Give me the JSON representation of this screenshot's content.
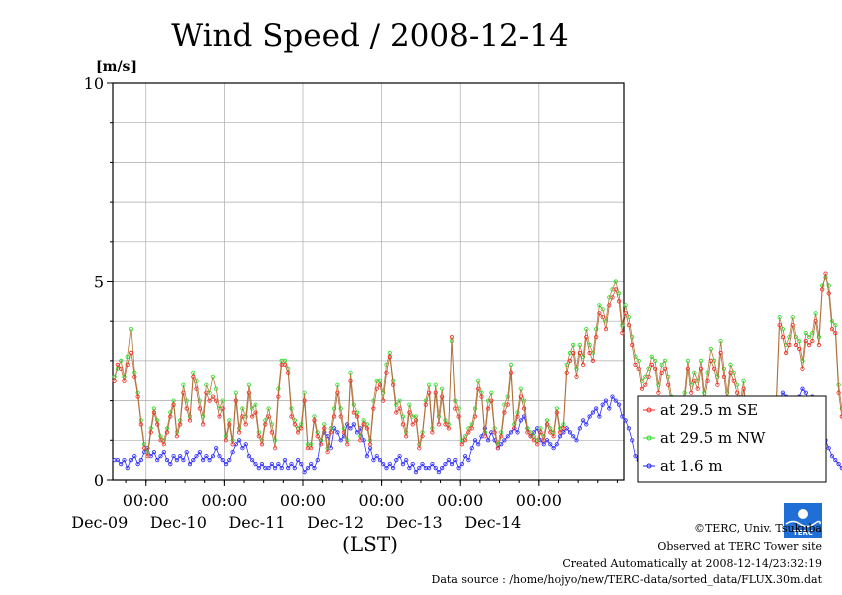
{
  "chart_data": {
    "type": "line",
    "title": "Wind Speed / 2008-12-14",
    "ylabel": "[m/s]",
    "xlabel": "(LST)",
    "ylim": [
      0,
      10
    ],
    "yticks": [
      "0",
      "5",
      "10"
    ],
    "xlim": [
      "2008-12-08T14:00",
      "2008-12-15T02:00"
    ],
    "xticks": [
      {
        "time": "00:00",
        "date": "Dec-09"
      },
      {
        "time": "00:00",
        "date": "Dec-10"
      },
      {
        "time": "00:00",
        "date": "Dec-11"
      },
      {
        "time": "00:00",
        "date": "Dec-12"
      },
      {
        "time": "00:00",
        "date": "Dec-13"
      },
      {
        "time": "00:00",
        "date": "Dec-14"
      }
    ],
    "grid": true,
    "legend_position": "right",
    "sample_interval_hours": 1,
    "series": [
      {
        "name": "at 29.5 m SE",
        "color": "#ff2020",
        "values": [
          2.5,
          2.9,
          2.8,
          2.5,
          2.9,
          3.2,
          2.6,
          2.1,
          1.4,
          0.8,
          0.6,
          1.2,
          1.7,
          1.4,
          1.0,
          0.9,
          1.2,
          1.6,
          1.9,
          1.1,
          1.4,
          2.2,
          1.8,
          1.5,
          2.6,
          2.3,
          1.8,
          1.4,
          2.2,
          2.0,
          2.1,
          2.0,
          1.6,
          1.8,
          1.0,
          1.4,
          0.9,
          2.0,
          1.2,
          1.6,
          1.4,
          2.2,
          1.6,
          1.7,
          1.1,
          0.9,
          1.4,
          1.6,
          1.2,
          0.8,
          2.1,
          2.9,
          2.9,
          2.7,
          1.6,
          1.4,
          1.2,
          1.3,
          2.0,
          0.8,
          0.8,
          1.5,
          1.1,
          0.9,
          1.3,
          0.7,
          1.2,
          1.6,
          2.2,
          1.6,
          1.2,
          0.9,
          2.5,
          1.7,
          1.6,
          1.0,
          1.4,
          1.3,
          0.9,
          1.8,
          2.3,
          2.4,
          2.0,
          2.7,
          3.1,
          2.4,
          1.7,
          1.8,
          1.4,
          1.1,
          1.7,
          1.4,
          1.5,
          0.8,
          1.1,
          1.9,
          2.2,
          1.2,
          2.2,
          1.4,
          2.1,
          1.4,
          1.3,
          3.6,
          1.8,
          1.6,
          0.9,
          1.0,
          1.2,
          1.3,
          1.6,
          2.3,
          2.1,
          1.1,
          1.8,
          2.0,
          1.2,
          0.8,
          1.1,
          1.7,
          1.9,
          2.7,
          1.3,
          1.6,
          2.1,
          1.8,
          1.2,
          1.1,
          1.0,
          0.9,
          1.2,
          1.0,
          1.4,
          1.2,
          1.1,
          1.7,
          1.2,
          1.3,
          2.7,
          3.0,
          3.2,
          2.6,
          3.2,
          2.9,
          3.6,
          3.2,
          3.0,
          3.6,
          4.2,
          4.1,
          3.8,
          4.4,
          4.6,
          4.8,
          4.5,
          3.7,
          4.2,
          3.9,
          3.4,
          2.9,
          2.8,
          2.3,
          2.4,
          2.6,
          2.9,
          2.8,
          2.2,
          2.7,
          2.8,
          2.4,
          1.9,
          1.4,
          1.3,
          1.7,
          2.0,
          2.8,
          2.2,
          2.5,
          2.3,
          2.8,
          2.0,
          2.5,
          3.0,
          2.8,
          2.4,
          3.2,
          2.6,
          2.0,
          2.7,
          2.5,
          2.2,
          1.8,
          2.3,
          1.4,
          1.2,
          1.0,
          1.1,
          1.4,
          1.0,
          1.2,
          0.9,
          1.1,
          1.8,
          3.9,
          3.6,
          3.2,
          3.4,
          3.9,
          3.4,
          3.3,
          2.8,
          3.5,
          3.4,
          3.5,
          4.0,
          3.4,
          4.8,
          5.2,
          4.7,
          3.8,
          3.7,
          2.2,
          1.6,
          1.0,
          0.8,
          0.8,
          0.6,
          0.7,
          0.5,
          0.6,
          0.3,
          0.7,
          1.0,
          0.9,
          1.6,
          1.8,
          1.7,
          1.9,
          1.8
        ]
      },
      {
        "name": "at 29.5 m NW",
        "color": "#20e020",
        "values": [
          2.6,
          2.8,
          3.0,
          2.6,
          3.1,
          3.8,
          2.7,
          2.2,
          1.5,
          0.9,
          0.7,
          1.3,
          1.8,
          1.5,
          1.1,
          1.0,
          1.3,
          1.7,
          2.0,
          1.2,
          1.5,
          2.4,
          2.0,
          1.6,
          2.7,
          2.5,
          2.0,
          1.6,
          2.4,
          2.2,
          2.6,
          2.3,
          1.8,
          2.0,
          1.1,
          1.5,
          1.0,
          2.2,
          1.3,
          1.8,
          1.6,
          2.4,
          1.8,
          1.9,
          1.2,
          1.0,
          1.5,
          1.8,
          1.4,
          1.0,
          2.3,
          3.0,
          3.0,
          2.8,
          1.8,
          1.5,
          1.3,
          1.4,
          2.2,
          0.9,
          0.9,
          1.6,
          1.2,
          1.0,
          1.4,
          0.8,
          1.3,
          1.8,
          2.4,
          1.8,
          1.3,
          1.0,
          2.7,
          1.9,
          1.7,
          1.1,
          1.5,
          1.4,
          1.0,
          2.0,
          2.5,
          2.5,
          2.2,
          2.9,
          3.2,
          2.5,
          1.9,
          2.0,
          1.6,
          1.2,
          1.9,
          1.6,
          1.6,
          0.9,
          1.2,
          2.0,
          2.4,
          1.3,
          2.4,
          1.6,
          2.3,
          1.5,
          1.4,
          3.5,
          2.0,
          1.8,
          1.0,
          1.1,
          1.3,
          1.4,
          1.8,
          2.5,
          2.2,
          1.2,
          2.0,
          2.2,
          1.3,
          0.9,
          1.2,
          1.9,
          2.1,
          2.9,
          1.4,
          1.7,
          2.3,
          2.0,
          1.3,
          1.2,
          1.1,
          1.0,
          1.3,
          1.1,
          1.5,
          1.3,
          1.2,
          1.8,
          1.3,
          1.4,
          2.9,
          3.2,
          3.4,
          2.8,
          3.4,
          3.1,
          3.8,
          3.4,
          3.2,
          3.8,
          4.4,
          4.3,
          4.0,
          4.6,
          4.8,
          5.0,
          4.7,
          3.9,
          4.4,
          4.1,
          3.6,
          3.1,
          3.0,
          2.5,
          2.6,
          2.8,
          3.1,
          3.0,
          2.4,
          2.9,
          3.0,
          2.6,
          2.1,
          1.5,
          1.4,
          1.9,
          2.2,
          3.0,
          2.4,
          2.7,
          2.5,
          3.0,
          2.2,
          2.7,
          3.3,
          3.0,
          2.6,
          3.5,
          2.8,
          2.2,
          2.9,
          2.7,
          2.4,
          2.0,
          2.5,
          1.5,
          1.3,
          1.1,
          1.2,
          1.5,
          1.1,
          1.3,
          1.0,
          1.2,
          2.0,
          4.1,
          3.8,
          3.4,
          3.6,
          4.1,
          3.6,
          3.5,
          3.0,
          3.7,
          3.6,
          3.7,
          4.2,
          3.6,
          4.9,
          5.1,
          4.9,
          4.0,
          3.9,
          2.4,
          1.8,
          1.1,
          0.9,
          0.9,
          0.7,
          0.8,
          0.6,
          0.7,
          0.4,
          0.8,
          1.1,
          1.0,
          1.8,
          2.0,
          1.9,
          2.1,
          2.0
        ]
      },
      {
        "name": "at 1.6 m",
        "color": "#2020ff",
        "values": [
          0.5,
          0.5,
          0.4,
          0.5,
          0.3,
          0.5,
          0.6,
          0.4,
          0.5,
          0.7,
          0.8,
          0.6,
          0.7,
          0.5,
          0.6,
          0.7,
          0.5,
          0.4,
          0.6,
          0.5,
          0.6,
          0.5,
          0.7,
          0.4,
          0.5,
          0.6,
          0.7,
          0.5,
          0.6,
          0.5,
          0.6,
          0.8,
          0.6,
          0.5,
          0.4,
          0.5,
          0.7,
          0.9,
          1.0,
          0.8,
          0.9,
          0.6,
          0.5,
          0.4,
          0.3,
          0.4,
          0.3,
          0.3,
          0.4,
          0.3,
          0.4,
          0.3,
          0.5,
          0.3,
          0.4,
          0.3,
          0.5,
          0.4,
          0.2,
          0.3,
          0.4,
          0.3,
          0.5,
          1.0,
          1.2,
          1.1,
          0.8,
          1.3,
          1.2,
          1.0,
          1.1,
          1.4,
          1.3,
          1.4,
          1.2,
          1.3,
          1.0,
          0.6,
          0.8,
          0.5,
          0.6,
          0.5,
          0.4,
          0.3,
          0.4,
          0.3,
          0.5,
          0.6,
          0.4,
          0.5,
          0.3,
          0.4,
          0.2,
          0.3,
          0.4,
          0.3,
          0.3,
          0.4,
          0.3,
          0.2,
          0.3,
          0.4,
          0.5,
          0.4,
          0.5,
          0.3,
          0.4,
          0.6,
          0.5,
          0.8,
          1.0,
          0.9,
          1.1,
          1.3,
          1.0,
          1.2,
          1.0,
          0.8,
          0.9,
          1.0,
          1.1,
          1.2,
          1.3,
          1.2,
          1.5,
          1.6,
          1.3,
          1.1,
          1.2,
          1.3,
          1.0,
          0.9,
          1.0,
          0.9,
          0.8,
          0.9,
          1.1,
          1.2,
          1.3,
          1.2,
          1.1,
          1.0,
          1.3,
          1.5,
          1.4,
          1.6,
          1.7,
          1.8,
          1.6,
          1.9,
          2.0,
          1.8,
          2.1,
          2.0,
          1.9,
          1.6,
          1.5,
          1.3,
          1.0,
          0.6,
          0.5,
          0.7,
          0.9,
          0.8,
          1.0,
          1.1,
          0.9,
          1.2,
          1.0,
          1.3,
          1.4,
          1.6,
          1.5,
          1.7,
          1.9,
          1.8,
          2.0,
          1.9,
          1.7,
          1.8,
          1.6,
          1.4,
          1.2,
          1.0,
          0.8,
          0.6,
          0.5,
          0.4,
          0.3,
          0.4,
          0.3,
          0.5,
          0.4,
          0.3,
          0.2,
          0.3,
          0.5,
          0.7,
          0.9,
          1.1,
          1.4,
          1.7,
          1.9,
          2.0,
          2.2,
          2.1,
          1.9,
          1.8,
          2.0,
          2.1,
          2.3,
          2.2,
          2.0,
          2.1,
          1.8,
          1.6,
          1.3,
          1.0,
          0.8,
          0.6,
          0.5,
          0.4,
          0.3,
          0.3,
          0.2,
          0.3,
          0.2,
          0.3,
          0.2,
          0.3,
          0.2,
          0.3,
          0.2,
          0.2
        ]
      }
    ]
  },
  "credits": {
    "copyright": "©TERC, Univ. Tsukuba",
    "observed": "Observed at TERC Tower site",
    "created": "Created Automatically at 2008-12-14/23:32:19",
    "source": "Data source : /home/hojyo/new/TERC-data/sorted_data/FLUX.30m.dat"
  },
  "logo": {
    "text": "TERC"
  }
}
